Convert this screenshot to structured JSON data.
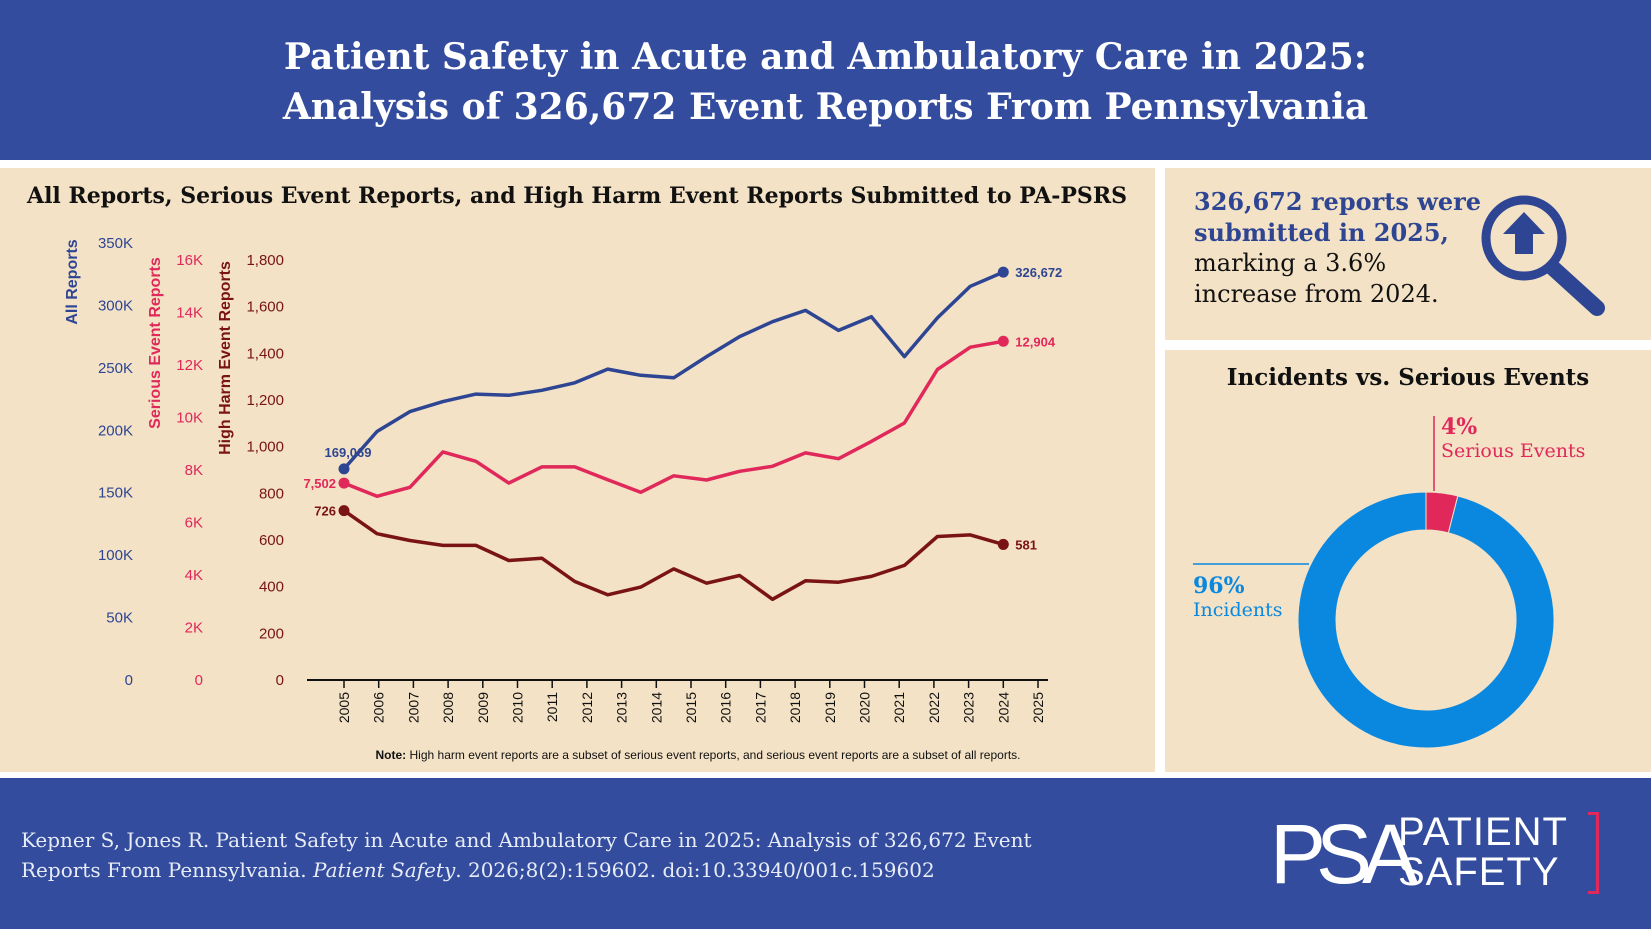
{
  "header": {
    "title_line1": "Patient Safety in Acute and Ambulatory Care in 2025:",
    "title_line2": "Analysis of 326,672 Event Reports From Pennsylvania"
  },
  "chart_data": [
    {
      "type": "line",
      "title": "All Reports, Serious Event Reports, and High Harm Event Reports Submitted to PA-PSRS",
      "x": [
        2005,
        2006,
        2007,
        2008,
        2009,
        2010,
        2011,
        2012,
        2013,
        2014,
        2015,
        2016,
        2017,
        2018,
        2019,
        2020,
        2021,
        2022,
        2023,
        2024,
        2025
      ],
      "x_tick_labels": [
        "2005",
        "2006",
        "2007",
        "2008",
        "2009",
        "2010",
        "2011",
        "2012",
        "2013",
        "2014",
        "2015",
        "2016",
        "2017",
        "2018",
        "2019",
        "2020",
        "2021",
        "2022",
        "2023",
        "2024",
        "2025"
      ],
      "series": [
        {
          "name": "All Reports",
          "color": "#2e4593",
          "axis": "all",
          "values": [
            169069,
            199000,
            215000,
            223000,
            229000,
            228000,
            232000,
            238000,
            249000,
            244000,
            242000,
            259000,
            275000,
            287000,
            296000,
            280000,
            291000,
            259000,
            290000,
            315300,
            326672
          ],
          "start_label": "169,069",
          "end_label": "326,672"
        },
        {
          "name": "Serious Event Reports",
          "color": "#e0285a",
          "axis": "serious",
          "values": [
            7502,
            7000,
            7340,
            8690,
            8330,
            7500,
            8120,
            8120,
            7630,
            7150,
            7780,
            7620,
            7950,
            8140,
            8650,
            8430,
            9090,
            9790,
            11830,
            12680,
            12904
          ],
          "start_label": "7,502",
          "end_label": "12,904"
        },
        {
          "name": "High Harm Event Reports",
          "color": "#7a1414",
          "axis": "highharm",
          "values": [
            726,
            627,
            598,
            577,
            577,
            512,
            522,
            422,
            365,
            398,
            476,
            415,
            448,
            346,
            425,
            419,
            444,
            491,
            615,
            622,
            581
          ],
          "start_label": "726",
          "end_label": "581"
        }
      ],
      "axes": {
        "all": {
          "label": "All Reports",
          "ylim": [
            0,
            350000
          ],
          "ticks": [
            "0",
            "50K",
            "100K",
            "150K",
            "200K",
            "250K",
            "300K",
            "350K"
          ],
          "color": "#2e4593"
        },
        "serious": {
          "label": "Serious Event Reports",
          "ylim": [
            0,
            16000
          ],
          "ticks": [
            "0",
            "2K",
            "4K",
            "6K",
            "8K",
            "10K",
            "12K",
            "14K",
            "16K"
          ],
          "color": "#e0285a"
        },
        "highharm": {
          "label": "High Harm Event Reports",
          "ylim": [
            0,
            1800
          ],
          "ticks": [
            "0",
            "200",
            "400",
            "600",
            "800",
            "1,000",
            "1,200",
            "1,400",
            "1,600",
            "1,800"
          ],
          "color": "#7a1414"
        }
      },
      "grid": false,
      "note_bold": "Note:",
      "note": " High harm event reports are a subset of serious event reports, and serious event reports are a subset of all reports."
    },
    {
      "type": "pie",
      "donut": true,
      "title": "Incidents vs. Serious Events",
      "slices": [
        {
          "name": "Serious Events",
          "value": 4,
          "label": "4%",
          "color": "#e0285a"
        },
        {
          "name": "Incidents",
          "value": 96,
          "label": "96%",
          "color": "#0a88e0"
        }
      ]
    }
  ],
  "callout": {
    "bold_line1": "326,672 reports were",
    "bold_line2": "submitted in 2025,",
    "line3": "marking a 3.6%",
    "line4": "increase from 2024.",
    "icon": "magnifier-up-arrow-icon"
  },
  "footer": {
    "citation_line1": "Kepner S, Jones R. Patient Safety in Acute and Ambulatory Care in 2025: Analysis of 326,672 Event",
    "citation_line2_pre": "Reports From Pennsylvania. ",
    "citation_journal": "Patient Safety",
    "citation_line2_post": ". 2026;8(2):159602. doi:10.33940/001c.159602",
    "logo_letters": "PSA",
    "logo_line1": "PATIENT",
    "logo_line2": "SAFETY"
  }
}
